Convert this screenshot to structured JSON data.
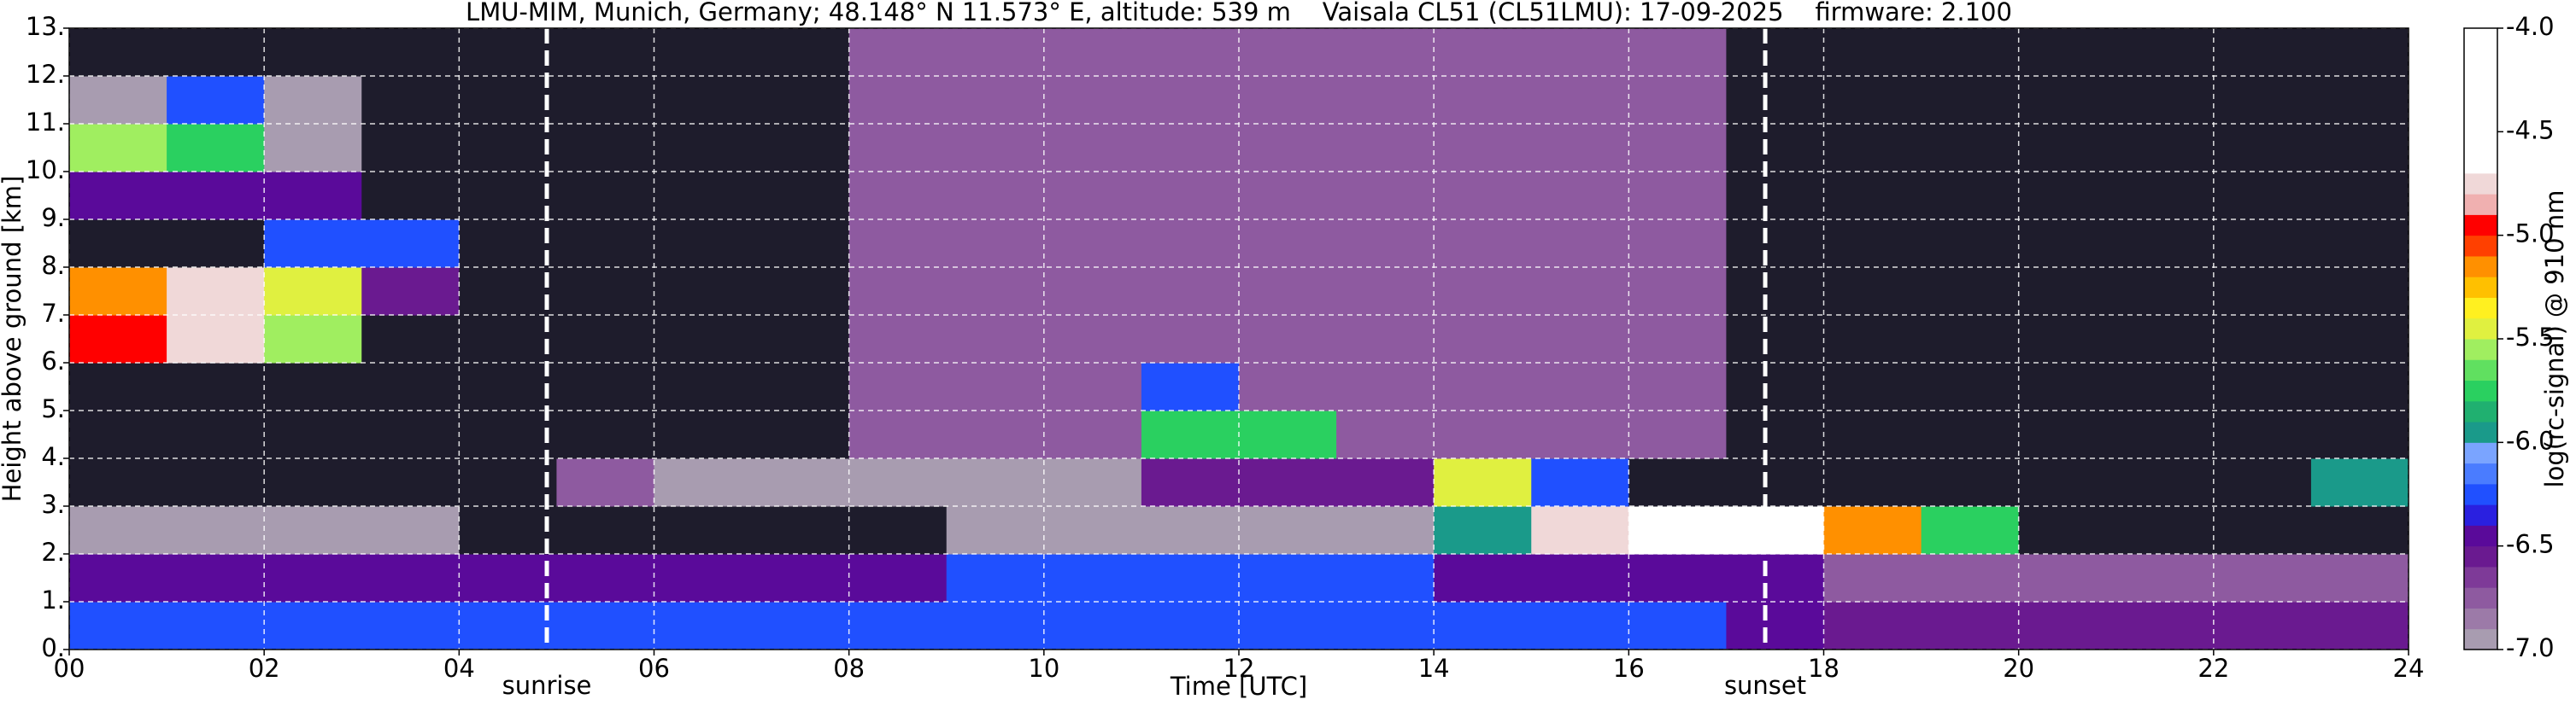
{
  "chart_data": {
    "type": "heatmap",
    "title": "LMU-MIM, Munich, Germany; 48.148° N 11.573° E, altitude: 539 m    Vaisala CL51 (CL51LMU): 17-09-2025    firmware: 2.100",
    "xlabel": "Time [UTC]",
    "ylabel": "Height above ground [km]",
    "colorbar_label": "log(rc-signal) @ 910 nm",
    "x": [
      0,
      1,
      2,
      3,
      4,
      5,
      6,
      7,
      8,
      9,
      10,
      11,
      12,
      13,
      14,
      15,
      16,
      17,
      18,
      19,
      20,
      21,
      22,
      23
    ],
    "y": [
      0,
      1,
      2,
      3,
      4,
      5,
      6,
      7,
      8,
      9,
      10,
      11,
      12
    ],
    "z": [
      [
        -6.3,
        -6.3,
        -6.3,
        -6.3,
        -6.3,
        -6.3,
        -6.3,
        -6.3,
        -6.3,
        -6.3,
        -6.3,
        -6.3,
        -6.3,
        -6.3,
        -6.3,
        -6.3,
        -6.3,
        -6.4,
        -6.6,
        -6.6,
        -6.6,
        -6.6,
        -6.6,
        -6.6
      ],
      [
        -6.5,
        -6.5,
        -6.5,
        -6.5,
        -6.5,
        -6.5,
        -6.5,
        -6.5,
        -6.5,
        -6.2,
        -6.2,
        -6.2,
        -6.2,
        -6.2,
        -6.4,
        -6.4,
        -6.4,
        -6.4,
        -6.7,
        -6.7,
        -6.7,
        -6.7,
        -6.7,
        -6.7
      ],
      [
        -6.9,
        -6.9,
        -6.9,
        -6.9,
        -7.1,
        -7.1,
        -7.1,
        -7.1,
        -7.1,
        -7.0,
        -7.0,
        -7.0,
        -7.0,
        -7.0,
        -6.0,
        -4.8,
        -4.6,
        -4.7,
        -5.2,
        -5.8,
        -7.2,
        -7.2,
        -7.2,
        -7.2
      ],
      [
        -7.1,
        -7.1,
        -7.1,
        -7.1,
        -7.1,
        -6.7,
        -7.0,
        -7.0,
        -7.0,
        -7.0,
        -7.0,
        -6.6,
        -6.6,
        -6.6,
        -5.5,
        -6.2,
        -7.2,
        -7.2,
        -7.2,
        -7.2,
        -7.2,
        -7.2,
        -7.2,
        -6.0
      ],
      [
        -7.1,
        -7.1,
        -7.1,
        -7.1,
        -7.1,
        -7.1,
        -7.1,
        -7.1,
        -6.8,
        -6.8,
        -6.8,
        -5.8,
        -5.8,
        -6.8,
        -6.8,
        -6.8,
        -6.8,
        -7.1,
        -7.1,
        -7.1,
        -7.1,
        -7.1,
        -7.1,
        -7.1
      ],
      [
        -7.1,
        -7.1,
        -7.1,
        -7.1,
        -7.1,
        -7.1,
        -7.1,
        -7.1,
        -6.8,
        -6.8,
        -6.8,
        -6.3,
        -6.8,
        -6.8,
        -6.8,
        -6.8,
        -6.8,
        -7.1,
        -7.1,
        -7.1,
        -7.1,
        -7.1,
        -7.1,
        -7.1
      ],
      [
        -4.9,
        -4.8,
        -5.6,
        -7.1,
        -7.1,
        -7.1,
        -7.1,
        -7.1,
        -6.8,
        -6.8,
        -6.8,
        -6.8,
        -6.8,
        -6.8,
        -6.8,
        -6.8,
        -6.8,
        -7.1,
        -7.1,
        -7.1,
        -7.1,
        -7.1,
        -7.1,
        -7.1
      ],
      [
        -5.2,
        -4.8,
        -5.5,
        -6.6,
        -7.1,
        -7.1,
        -7.1,
        -7.1,
        -6.8,
        -6.8,
        -6.8,
        -6.8,
        -6.8,
        -6.8,
        -6.8,
        -6.8,
        -6.8,
        -7.1,
        -7.1,
        -7.1,
        -7.1,
        -7.1,
        -7.1,
        -7.1
      ],
      [
        -7.1,
        -7.1,
        -6.3,
        -6.2,
        -7.1,
        -7.1,
        -7.1,
        -7.1,
        -6.8,
        -6.8,
        -6.8,
        -6.8,
        -6.8,
        -6.8,
        -6.8,
        -6.8,
        -6.8,
        -7.1,
        -7.1,
        -7.1,
        -7.1,
        -7.1,
        -7.1,
        -7.1
      ],
      [
        -6.4,
        -6.4,
        -6.4,
        -7.1,
        -7.1,
        -7.1,
        -7.1,
        -7.1,
        -6.8,
        -6.8,
        -6.8,
        -6.8,
        -6.8,
        -6.8,
        -6.8,
        -6.8,
        -6.8,
        -7.1,
        -7.1,
        -7.1,
        -7.1,
        -7.1,
        -7.1,
        -7.1
      ],
      [
        -5.6,
        -5.7,
        -7.0,
        -7.1,
        -7.1,
        -7.1,
        -7.1,
        -7.1,
        -6.8,
        -6.8,
        -6.8,
        -6.8,
        -6.8,
        -6.8,
        -6.8,
        -6.8,
        -6.8,
        -7.1,
        -7.1,
        -7.1,
        -7.1,
        -7.1,
        -7.1,
        -7.1
      ],
      [
        -7.0,
        -6.2,
        -7.0,
        -7.1,
        -7.1,
        -7.1,
        -7.1,
        -7.1,
        -6.8,
        -6.8,
        -6.8,
        -6.8,
        -6.8,
        -6.8,
        -6.8,
        -6.8,
        -6.8,
        -7.1,
        -7.1,
        -7.1,
        -7.1,
        -7.1,
        -7.1,
        -7.1
      ],
      [
        -7.1,
        -7.1,
        -7.1,
        -7.1,
        -7.1,
        -7.1,
        -7.1,
        -7.1,
        -6.8,
        -6.8,
        -6.8,
        -6.8,
        -6.8,
        -6.8,
        -6.8,
        -6.8,
        -6.8,
        -7.1,
        -7.1,
        -7.1,
        -7.1,
        -7.1,
        -7.1,
        -7.1
      ]
    ],
    "xlim": [
      0,
      24
    ],
    "ylim": [
      0,
      13
    ],
    "xticks": [
      {
        "value": 0,
        "label": "00"
      },
      {
        "value": 2,
        "label": "02"
      },
      {
        "value": 4,
        "label": "04"
      },
      {
        "value": 6,
        "label": "06"
      },
      {
        "value": 8,
        "label": "08"
      },
      {
        "value": 10,
        "label": "10"
      },
      {
        "value": 12,
        "label": "12"
      },
      {
        "value": 14,
        "label": "14"
      },
      {
        "value": 16,
        "label": "16"
      },
      {
        "value": 18,
        "label": "18"
      },
      {
        "value": 20,
        "label": "20"
      },
      {
        "value": 22,
        "label": "22"
      },
      {
        "value": 24,
        "label": "24"
      }
    ],
    "yticks": [
      {
        "value": 0,
        "label": "0."
      },
      {
        "value": 1,
        "label": "1."
      },
      {
        "value": 2,
        "label": "2."
      },
      {
        "value": 3,
        "label": "3."
      },
      {
        "value": 4,
        "label": "4."
      },
      {
        "value": 5,
        "label": "5."
      },
      {
        "value": 6,
        "label": "6."
      },
      {
        "value": 7,
        "label": "7."
      },
      {
        "value": 8,
        "label": "8."
      },
      {
        "value": 9,
        "label": "9."
      },
      {
        "value": 10,
        "label": "10."
      },
      {
        "value": 11,
        "label": "11."
      },
      {
        "value": 12,
        "label": "12."
      },
      {
        "value": 13,
        "label": "13."
      }
    ],
    "grid": true,
    "clim": [
      -7,
      -4
    ],
    "cticks": [
      {
        "value": -7,
        "label": "-7.0"
      },
      {
        "value": -6.5,
        "label": "-6.5"
      },
      {
        "value": -6,
        "label": "-6.0"
      },
      {
        "value": -5.5,
        "label": "-5.5"
      },
      {
        "value": -5,
        "label": "-5.0"
      },
      {
        "value": -4.5,
        "label": "-4.5"
      },
      {
        "value": -4,
        "label": "-4.0"
      }
    ],
    "under_color": "#1e1c2c",
    "colorscale": [
      "#a89cb0",
      "#9c7aa8",
      "#8e5aa0",
      "#7e3a98",
      "#6a1a90",
      "#5a0a9a",
      "#2a20e0",
      "#2050ff",
      "#4a7cff",
      "#7aa4ff",
      "#1a9a8a",
      "#20b070",
      "#2ad060",
      "#60e060",
      "#a0ee60",
      "#e0f040",
      "#fff020",
      "#ffc000",
      "#ff9000",
      "#ff4000",
      "#ff0000",
      "#f0b0b0",
      "#f0d8d8",
      "#ffffff",
      "#ffffff",
      "#ffffff",
      "#ffffff",
      "#ffffff",
      "#ffffff",
      "#ffffff"
    ],
    "annotations": [
      {
        "text": "sunrise",
        "x": 4.9
      },
      {
        "text": "sunset",
        "x": 17.4
      }
    ]
  }
}
